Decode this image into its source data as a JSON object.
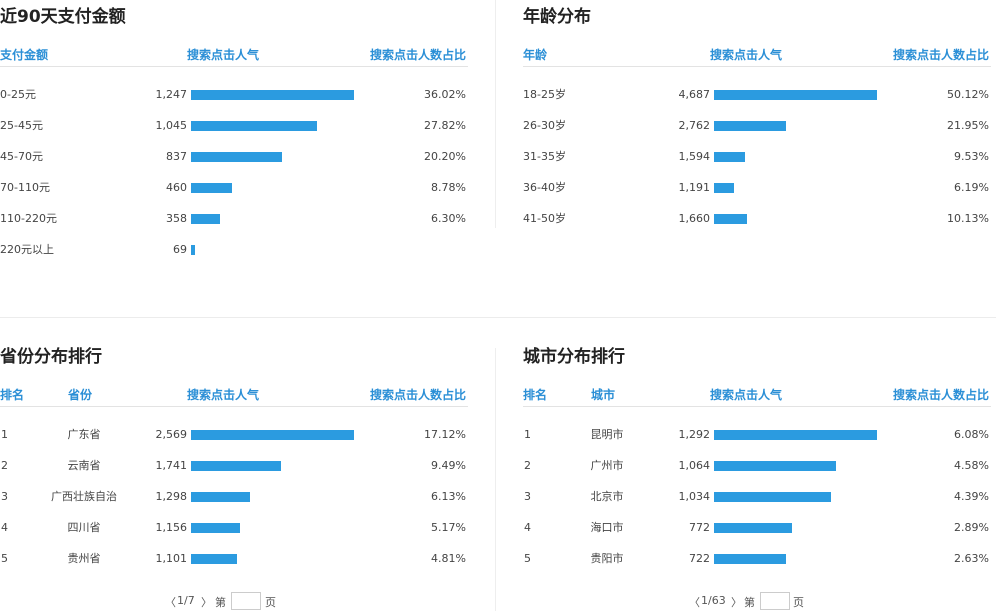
{
  "panels": {
    "payment": {
      "title": "近90天支付金额",
      "headers": {
        "name": "支付金额",
        "popularity": "搜索点击人气",
        "percent": "搜索点击人数占比"
      },
      "rows": [
        {
          "label": "0-25元",
          "value": "1,247",
          "percent": "36.02%",
          "bar": 1.0
        },
        {
          "label": "25-45元",
          "value": "1,045",
          "percent": "27.82%",
          "bar": 0.77
        },
        {
          "label": "45-70元",
          "value": "837",
          "percent": "20.20%",
          "bar": 0.56
        },
        {
          "label": "70-110元",
          "value": "460",
          "percent": "8.78%",
          "bar": 0.25
        },
        {
          "label": "110-220元",
          "value": "358",
          "percent": "6.30%",
          "bar": 0.18
        },
        {
          "label": "220元以上",
          "value": "69",
          "percent": "",
          "bar": 0.025
        }
      ]
    },
    "age": {
      "title": "年龄分布",
      "headers": {
        "name": "年龄",
        "popularity": "搜索点击人气",
        "percent": "搜索点击人数占比"
      },
      "rows": [
        {
          "label": "18-25岁",
          "value": "4,687",
          "percent": "50.12%",
          "bar": 1.0
        },
        {
          "label": "26-30岁",
          "value": "2,762",
          "percent": "21.95%",
          "bar": 0.44
        },
        {
          "label": "31-35岁",
          "value": "1,594",
          "percent": "9.53%",
          "bar": 0.19
        },
        {
          "label": "36-40岁",
          "value": "1,191",
          "percent": "6.19%",
          "bar": 0.12
        },
        {
          "label": "41-50岁",
          "value": "1,660",
          "percent": "10.13%",
          "bar": 0.2
        }
      ]
    },
    "province": {
      "title": "省份分布排行",
      "headers": {
        "rank": "排名",
        "region": "省份",
        "popularity": "搜索点击人气",
        "percent": "搜索点击人数占比"
      },
      "rows": [
        {
          "rank": "1",
          "region": "广东省",
          "value": "2,569",
          "percent": "17.12%",
          "bar": 1.0
        },
        {
          "rank": "2",
          "region": "云南省",
          "value": "1,741",
          "percent": "9.49%",
          "bar": 0.55
        },
        {
          "rank": "3",
          "region": "广西壮族自治",
          "value": "1,298",
          "percent": "6.13%",
          "bar": 0.36
        },
        {
          "rank": "4",
          "region": "四川省",
          "value": "1,156",
          "percent": "5.17%",
          "bar": 0.3
        },
        {
          "rank": "5",
          "region": "贵州省",
          "value": "1,101",
          "percent": "4.81%",
          "bar": 0.28
        }
      ],
      "pager": {
        "page": "1/7",
        "prefix": "第",
        "suffix": "页"
      }
    },
    "city": {
      "title": "城市分布排行",
      "headers": {
        "rank": "排名",
        "region": "城市",
        "popularity": "搜索点击人气",
        "percent": "搜索点击人数占比"
      },
      "rows": [
        {
          "rank": "1",
          "region": "昆明市",
          "value": "1,292",
          "percent": "6.08%",
          "bar": 1.0
        },
        {
          "rank": "2",
          "region": "广州市",
          "value": "1,064",
          "percent": "4.58%",
          "bar": 0.75
        },
        {
          "rank": "3",
          "region": "北京市",
          "value": "1,034",
          "percent": "4.39%",
          "bar": 0.72
        },
        {
          "rank": "4",
          "region": "海口市",
          "value": "772",
          "percent": "2.89%",
          "bar": 0.48
        },
        {
          "rank": "5",
          "region": "贵阳市",
          "value": "722",
          "percent": "2.63%",
          "bar": 0.44
        }
      ],
      "pager": {
        "page": "1/63",
        "prefix": "第",
        "suffix": "页"
      }
    }
  },
  "colors": {
    "accent": "#2b8fd6",
    "bar": "#2b9be0"
  }
}
